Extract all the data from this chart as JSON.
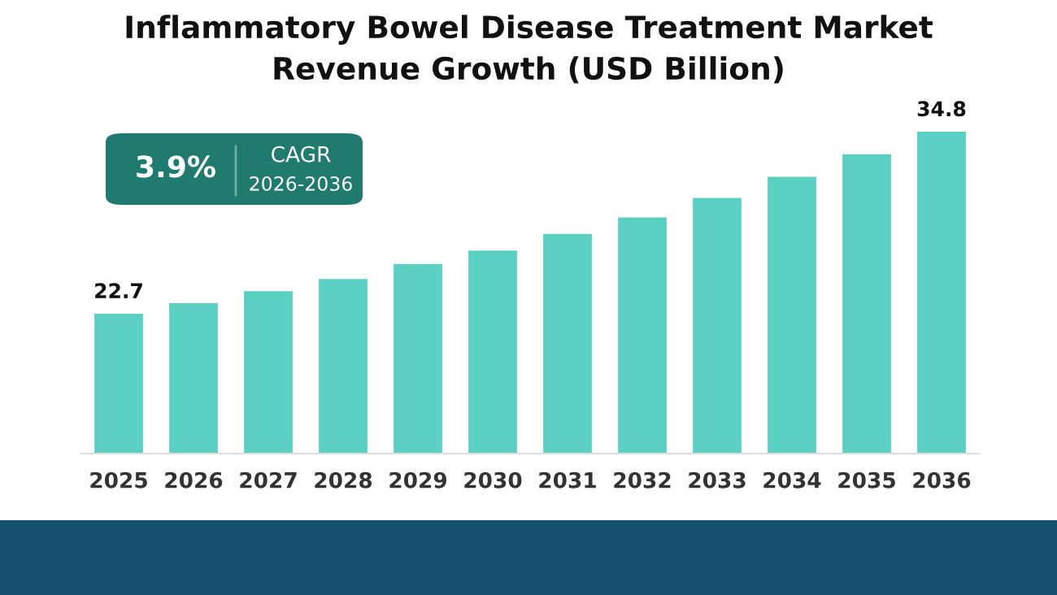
{
  "chart_data": {
    "type": "bar",
    "title": "Inflammatory Bowel Disease Treatment Market\nRevenue Growth (USD Billion)",
    "categories": [
      "2025",
      "2026",
      "2027",
      "2028",
      "2029",
      "2030",
      "2031",
      "2032",
      "2033",
      "2034",
      "2035",
      "2036"
    ],
    "values": [
      22.7,
      23.4,
      24.2,
      25.0,
      26.0,
      26.9,
      28.0,
      29.1,
      30.4,
      31.8,
      33.3,
      34.8
    ],
    "value_labels": [
      "22.7",
      null,
      null,
      null,
      null,
      null,
      null,
      null,
      null,
      null,
      null,
      "34.8"
    ],
    "color": "#5ccfc3",
    "ylim": [
      13.4,
      34.8
    ],
    "tick_labels": "x",
    "grid": false,
    "legend": false,
    "annotations": [
      "3.9%",
      "CAGR",
      "2026-2036"
    ]
  }
}
